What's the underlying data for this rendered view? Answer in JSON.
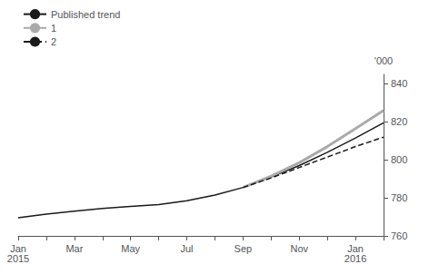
{
  "chart_data": {
    "type": "line",
    "y_label": "'000",
    "categories": [
      "Jan\n2015",
      null,
      "Mar",
      null,
      "May",
      null,
      "Jul",
      null,
      "Sep",
      null,
      "Nov",
      null,
      "Jan\n2016",
      null
    ],
    "series": [
      {
        "name": "Published trend",
        "color": "#1a1a1a",
        "line_style": "solid",
        "values": [
          769.5,
          771.5,
          773.0,
          774.5,
          775.5,
          776.5,
          778.5,
          781.5,
          785.5,
          791.0,
          797.0,
          804.0,
          811.5,
          819.5
        ]
      },
      {
        "name": "1",
        "color": "#aaaaaa",
        "line_style": "solid",
        "values": [
          null,
          null,
          null,
          null,
          null,
          null,
          null,
          null,
          785.5,
          791.5,
          798.5,
          807.0,
          816.5,
          826.0
        ]
      },
      {
        "name": "2",
        "color": "#1a1a1a",
        "line_style": "dashed",
        "values": [
          null,
          null,
          null,
          null,
          null,
          null,
          null,
          null,
          785.5,
          790.5,
          796.0,
          801.5,
          807.0,
          812.0
        ]
      }
    ],
    "ylim": [
      760,
      845
    ],
    "yticks": [
      760,
      780,
      800,
      820,
      840
    ],
    "grid": false,
    "legend": "upper left"
  }
}
